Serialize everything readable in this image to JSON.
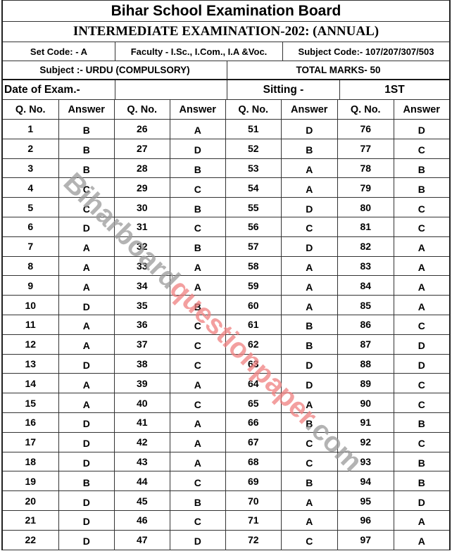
{
  "header": {
    "board": "Bihar School Examination Board",
    "exam": "INTERMEDIATE EXAMINATION-202: (ANNUAL)",
    "set_code": "Set Code:  -  A",
    "faculty": "Faculty - I.Sc., I.Com., I.A &Voc.",
    "subject_code": "Subject Code:- 107/207/307/503",
    "subject": "Subject :- URDU (COMPULSORY)",
    "total_marks": "TOTAL MARKS- 50",
    "date_label": "Date of Exam.-",
    "date_value": "",
    "sitting_label": "Sitting -",
    "sitting_value": "1ST"
  },
  "columns": [
    "Q. No.",
    "Answer",
    "Q. No.",
    "Answer",
    "Q. No.",
    "Answer",
    "Q. No.",
    "Answer"
  ],
  "rows": [
    [
      1,
      "B",
      26,
      "A",
      51,
      "D",
      76,
      "D"
    ],
    [
      2,
      "B",
      27,
      "D",
      52,
      "B",
      77,
      "C"
    ],
    [
      3,
      "B",
      28,
      "B",
      53,
      "A",
      78,
      "B"
    ],
    [
      4,
      "C",
      29,
      "C",
      54,
      "A",
      79,
      "B"
    ],
    [
      5,
      "C",
      30,
      "B",
      55,
      "D",
      80,
      "C"
    ],
    [
      6,
      "D",
      31,
      "C",
      56,
      "C",
      81,
      "C"
    ],
    [
      7,
      "A",
      32,
      "B",
      57,
      "D",
      82,
      "A"
    ],
    [
      8,
      "A",
      33,
      "A",
      58,
      "A",
      83,
      "A"
    ],
    [
      9,
      "A",
      34,
      "A",
      59,
      "A",
      84,
      "A"
    ],
    [
      10,
      "D",
      35,
      "B",
      60,
      "A",
      85,
      "A"
    ],
    [
      11,
      "A",
      36,
      "C",
      61,
      "B",
      86,
      "C"
    ],
    [
      12,
      "A",
      37,
      "C",
      62,
      "B",
      87,
      "D"
    ],
    [
      13,
      "D",
      38,
      "C",
      63,
      "D",
      88,
      "D"
    ],
    [
      14,
      "A",
      39,
      "A",
      64,
      "D",
      89,
      "C"
    ],
    [
      15,
      "A",
      40,
      "C",
      65,
      "A",
      90,
      "C"
    ],
    [
      16,
      "D",
      41,
      "A",
      66,
      "B",
      91,
      "B"
    ],
    [
      17,
      "D",
      42,
      "A",
      67,
      "C",
      92,
      "C"
    ],
    [
      18,
      "D",
      43,
      "A",
      68,
      "C",
      93,
      "B"
    ],
    [
      19,
      "B",
      44,
      "C",
      69,
      "B",
      94,
      "B"
    ],
    [
      20,
      "D",
      45,
      "B",
      70,
      "A",
      95,
      "D"
    ],
    [
      21,
      "D",
      46,
      "C",
      71,
      "A",
      96,
      "A"
    ],
    [
      22,
      "D",
      47,
      "D",
      72,
      "C",
      97,
      "A"
    ]
  ],
  "watermark": {
    "part1": "Biharboard",
    "part2": "questionpaper",
    ".com": ".com",
    "part3": ".com",
    "color_gray": "#9a9a9a",
    "color_red": "#f08080"
  }
}
